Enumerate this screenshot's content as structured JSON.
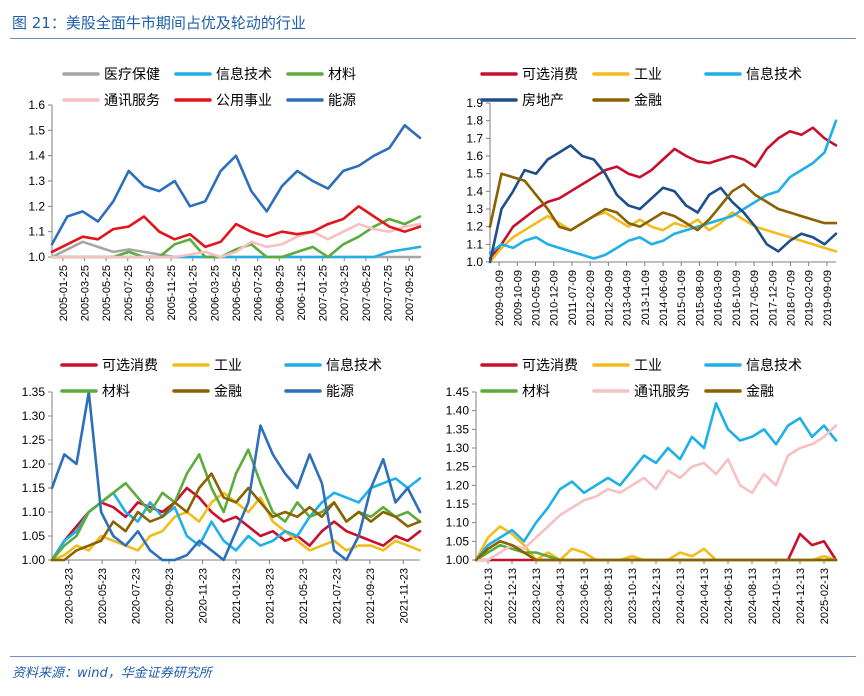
{
  "page": {
    "title": "图 21：美股全面牛市期间占优及轮动的行业",
    "source": "资料来源：wind，华金证券研究所"
  },
  "colors": {
    "医疗保健": "#a6a6a6",
    "信息技术": "#1fb0e8",
    "材料": "#5cab3c",
    "通讯服务": "#f6c1c1",
    "公用事业": "#e4141b",
    "能源": "#2e6fba",
    "可选消费": "#c8102e",
    "工业": "#f2bd1a",
    "房地产": "#1f4f8a",
    "金融": "#8a6200"
  },
  "chart_data": [
    {
      "type": "line",
      "ylim": [
        1.0,
        1.6
      ],
      "yticks": [
        "1.0",
        "1.1",
        "1.2",
        "1.3",
        "1.4",
        "1.5",
        "1.6"
      ],
      "xticks": [
        "2005-01-25",
        "2005-03-25",
        "2005-05-25",
        "2005-07-25",
        "2005-09-25",
        "2005-11-25",
        "2006-01-25",
        "2006-03-25",
        "2006-05-25",
        "2006-07-25",
        "2006-09-25",
        "2006-11-25",
        "2007-01-25",
        "2007-03-25",
        "2007-05-25",
        "2007-07-25",
        "2007-09-25"
      ],
      "legend": [
        "医疗保健",
        "信息技术",
        "材料",
        "通讯服务",
        "公用事业",
        "能源"
      ],
      "series": [
        {
          "name": "医疗保健",
          "values": [
            1.0,
            1.03,
            1.06,
            1.04,
            1.02,
            1.03,
            1.02,
            1.01,
            1.0,
            1.0,
            1.0,
            1.0,
            1.0,
            1.0,
            1.0,
            1.0,
            1.0,
            1.0,
            1.0,
            1.0,
            1.0,
            1.0,
            1.0,
            1.0,
            1.0
          ]
        },
        {
          "name": "信息技术",
          "values": [
            1.0,
            1.0,
            1.0,
            1.0,
            1.0,
            1.0,
            1.0,
            1.0,
            1.0,
            1.0,
            1.0,
            1.0,
            1.0,
            1.0,
            1.0,
            1.0,
            1.0,
            1.0,
            1.0,
            1.0,
            1.0,
            1.0,
            1.02,
            1.03,
            1.04
          ]
        },
        {
          "name": "材料",
          "values": [
            1.0,
            1.0,
            1.0,
            1.0,
            1.0,
            1.02,
            1.0,
            1.0,
            1.05,
            1.07,
            1.0,
            1.0,
            1.03,
            1.05,
            1.0,
            1.0,
            1.02,
            1.04,
            1.0,
            1.05,
            1.08,
            1.12,
            1.15,
            1.13,
            1.16
          ]
        },
        {
          "name": "通讯服务",
          "values": [
            1.0,
            1.0,
            1.0,
            1.0,
            1.0,
            1.0,
            1.0,
            1.0,
            1.0,
            1.01,
            1.02,
            1.0,
            1.02,
            1.06,
            1.04,
            1.05,
            1.08,
            1.1,
            1.07,
            1.1,
            1.13,
            1.11,
            1.1,
            1.12,
            1.13
          ]
        },
        {
          "name": "公用事业",
          "values": [
            1.02,
            1.05,
            1.08,
            1.07,
            1.11,
            1.12,
            1.16,
            1.1,
            1.07,
            1.09,
            1.04,
            1.06,
            1.13,
            1.1,
            1.08,
            1.1,
            1.09,
            1.1,
            1.13,
            1.15,
            1.2,
            1.16,
            1.12,
            1.1,
            1.12
          ]
        },
        {
          "name": "能源",
          "values": [
            1.05,
            1.16,
            1.18,
            1.14,
            1.22,
            1.34,
            1.28,
            1.26,
            1.3,
            1.2,
            1.22,
            1.34,
            1.4,
            1.26,
            1.18,
            1.28,
            1.34,
            1.3,
            1.27,
            1.34,
            1.36,
            1.4,
            1.43,
            1.52,
            1.47
          ]
        }
      ]
    },
    {
      "type": "line",
      "ylim": [
        1.0,
        1.9
      ],
      "yticks": [
        "1.0",
        "1.1",
        "1.2",
        "1.3",
        "1.4",
        "1.5",
        "1.6",
        "1.7",
        "1.8",
        "1.9"
      ],
      "xticks": [
        "2009-03-09",
        "2009-10-09",
        "2010-05-09",
        "2010-12-09",
        "2011-07-09",
        "2012-02-09",
        "2012-09-09",
        "2013-04-09",
        "2013-11-09",
        "2014-06-09",
        "2015-01-09",
        "2015-08-09",
        "2016-03-09",
        "2016-10-09",
        "2017-05-09",
        "2017-12-09",
        "2018-07-09",
        "2019-02-09",
        "2019-09-09"
      ],
      "legend": [
        "可选消费",
        "工业",
        "信息技术",
        "房地产",
        "金融"
      ],
      "series": [
        {
          "name": "可选消费",
          "values": [
            1.02,
            1.1,
            1.2,
            1.25,
            1.3,
            1.34,
            1.36,
            1.4,
            1.44,
            1.48,
            1.52,
            1.54,
            1.5,
            1.48,
            1.52,
            1.58,
            1.64,
            1.6,
            1.57,
            1.56,
            1.58,
            1.6,
            1.58,
            1.54,
            1.64,
            1.7,
            1.74,
            1.72,
            1.76,
            1.7,
            1.66
          ]
        },
        {
          "name": "工业",
          "values": [
            1.0,
            1.08,
            1.14,
            1.18,
            1.22,
            1.26,
            1.22,
            1.18,
            1.22,
            1.26,
            1.28,
            1.24,
            1.2,
            1.24,
            1.2,
            1.18,
            1.22,
            1.2,
            1.24,
            1.18,
            1.22,
            1.28,
            1.24,
            1.2,
            1.18,
            1.16,
            1.14,
            1.12,
            1.1,
            1.08,
            1.06
          ]
        },
        {
          "name": "信息技术",
          "values": [
            1.05,
            1.1,
            1.08,
            1.12,
            1.14,
            1.1,
            1.08,
            1.06,
            1.04,
            1.02,
            1.04,
            1.08,
            1.12,
            1.14,
            1.1,
            1.12,
            1.16,
            1.18,
            1.2,
            1.22,
            1.24,
            1.26,
            1.3,
            1.34,
            1.38,
            1.4,
            1.48,
            1.52,
            1.56,
            1.62,
            1.8
          ]
        },
        {
          "name": "房地产",
          "values": [
            1.0,
            1.3,
            1.4,
            1.52,
            1.5,
            1.58,
            1.62,
            1.66,
            1.6,
            1.58,
            1.5,
            1.38,
            1.32,
            1.3,
            1.36,
            1.42,
            1.4,
            1.32,
            1.28,
            1.38,
            1.42,
            1.34,
            1.28,
            1.2,
            1.1,
            1.06,
            1.12,
            1.16,
            1.14,
            1.1,
            1.16
          ]
        },
        {
          "name": "金融",
          "values": [
            1.2,
            1.5,
            1.48,
            1.46,
            1.38,
            1.3,
            1.2,
            1.18,
            1.22,
            1.26,
            1.3,
            1.28,
            1.22,
            1.2,
            1.24,
            1.28,
            1.26,
            1.22,
            1.18,
            1.24,
            1.32,
            1.4,
            1.44,
            1.38,
            1.34,
            1.3,
            1.28,
            1.26,
            1.24,
            1.22,
            1.22
          ]
        }
      ]
    },
    {
      "type": "line",
      "ylim": [
        1.0,
        1.35
      ],
      "yticks": [
        "1.00",
        "1.05",
        "1.10",
        "1.15",
        "1.20",
        "1.25",
        "1.30",
        "1.35"
      ],
      "xticks": [
        "2020-03-23",
        "2020-05-23",
        "2020-07-23",
        "2020-09-23",
        "2020-11-23",
        "2021-01-23",
        "2021-03-23",
        "2021-05-23",
        "2021-07-23",
        "2021-09-23",
        "2021-11-23"
      ],
      "legend": [
        "可选消费",
        "工业",
        "信息技术",
        "材料",
        "金融",
        "能源"
      ],
      "series": [
        {
          "name": "可选消费",
          "values": [
            1.0,
            1.04,
            1.07,
            1.1,
            1.12,
            1.11,
            1.09,
            1.12,
            1.11,
            1.1,
            1.12,
            1.15,
            1.13,
            1.1,
            1.08,
            1.09,
            1.07,
            1.05,
            1.06,
            1.04,
            1.05,
            1.03,
            1.06,
            1.08,
            1.06,
            1.05,
            1.04,
            1.03,
            1.05,
            1.04,
            1.06
          ]
        },
        {
          "name": "工业",
          "values": [
            1.0,
            1.01,
            1.03,
            1.02,
            1.05,
            1.04,
            1.03,
            1.02,
            1.05,
            1.06,
            1.09,
            1.1,
            1.08,
            1.12,
            1.14,
            1.12,
            1.1,
            1.13,
            1.08,
            1.06,
            1.04,
            1.02,
            1.03,
            1.04,
            1.02,
            1.03,
            1.03,
            1.02,
            1.04,
            1.03,
            1.02
          ]
        },
        {
          "name": "信息技术",
          "values": [
            1.0,
            1.04,
            1.06,
            1.1,
            1.12,
            1.14,
            1.1,
            1.08,
            1.12,
            1.09,
            1.11,
            1.05,
            1.03,
            1.08,
            1.04,
            1.02,
            1.05,
            1.03,
            1.04,
            1.06,
            1.05,
            1.09,
            1.12,
            1.14,
            1.13,
            1.12,
            1.15,
            1.16,
            1.17,
            1.15,
            1.17
          ]
        },
        {
          "name": "材料",
          "values": [
            1.0,
            1.03,
            1.05,
            1.1,
            1.12,
            1.14,
            1.16,
            1.13,
            1.1,
            1.14,
            1.12,
            1.18,
            1.22,
            1.15,
            1.1,
            1.18,
            1.23,
            1.16,
            1.1,
            1.08,
            1.12,
            1.09,
            1.1,
            1.12,
            1.08,
            1.1,
            1.09,
            1.11,
            1.09,
            1.1,
            1.08
          ]
        },
        {
          "name": "金融",
          "values": [
            1.0,
            1.0,
            1.02,
            1.03,
            1.04,
            1.08,
            1.06,
            1.1,
            1.08,
            1.09,
            1.12,
            1.1,
            1.15,
            1.18,
            1.13,
            1.12,
            1.15,
            1.12,
            1.09,
            1.1,
            1.09,
            1.11,
            1.09,
            1.12,
            1.08,
            1.1,
            1.08,
            1.1,
            1.09,
            1.07,
            1.08
          ]
        },
        {
          "name": "能源",
          "values": [
            1.15,
            1.22,
            1.2,
            1.35,
            1.1,
            1.05,
            1.03,
            1.06,
            1.02,
            1.0,
            1.0,
            1.01,
            1.04,
            1.02,
            1.0,
            1.06,
            1.12,
            1.28,
            1.22,
            1.18,
            1.15,
            1.22,
            1.16,
            1.02,
            1.0,
            1.05,
            1.15,
            1.21,
            1.12,
            1.15,
            1.1
          ]
        }
      ]
    },
    {
      "type": "line",
      "ylim": [
        1.0,
        1.45
      ],
      "yticks": [
        "1.00",
        "1.05",
        "1.10",
        "1.15",
        "1.20",
        "1.25",
        "1.30",
        "1.35",
        "1.40",
        "1.45"
      ],
      "xticks": [
        "2022-10-13",
        "2022-12-13",
        "2023-02-13",
        "2023-04-13",
        "2023-06-13",
        "2023-08-13",
        "2023-10-13",
        "2023-12-13",
        "2024-02-13",
        "2024-04-13",
        "2024-06-13",
        "2024-08-13",
        "2024-10-13",
        "2024-12-13",
        "2025-02-13"
      ],
      "legend": [
        "可选消费",
        "工业",
        "信息技术",
        "材料",
        "通讯服务",
        "金融"
      ],
      "series": [
        {
          "name": "可选消费",
          "values": [
            1.0,
            1.0,
            1.0,
            1.0,
            1.0,
            1.0,
            1.0,
            1.0,
            1.0,
            1.0,
            1.0,
            1.0,
            1.0,
            1.0,
            1.0,
            1.0,
            1.0,
            1.0,
            1.0,
            1.0,
            1.0,
            1.0,
            1.0,
            1.0,
            1.0,
            1.0,
            1.0,
            1.07,
            1.04,
            1.05,
            1.0
          ]
        },
        {
          "name": "工业",
          "values": [
            1.0,
            1.06,
            1.09,
            1.07,
            1.04,
            1.0,
            1.02,
            1.0,
            1.03,
            1.02,
            1.0,
            1.0,
            1.0,
            1.01,
            1.0,
            1.0,
            1.0,
            1.02,
            1.01,
            1.03,
            1.0,
            1.0,
            1.0,
            1.0,
            1.0,
            1.0,
            1.0,
            1.0,
            1.0,
            1.01,
            1.0
          ]
        },
        {
          "name": "信息技术",
          "values": [
            1.0,
            1.04,
            1.06,
            1.08,
            1.05,
            1.1,
            1.14,
            1.19,
            1.21,
            1.18,
            1.2,
            1.22,
            1.2,
            1.24,
            1.28,
            1.26,
            1.3,
            1.27,
            1.33,
            1.3,
            1.42,
            1.35,
            1.32,
            1.33,
            1.35,
            1.31,
            1.36,
            1.38,
            1.33,
            1.36,
            1.32
          ]
        },
        {
          "name": "材料",
          "values": [
            1.0,
            1.02,
            1.04,
            1.03,
            1.02,
            1.02,
            1.01,
            1.0,
            1.0,
            1.0,
            1.0,
            1.0,
            1.0,
            1.0,
            1.0,
            1.0,
            1.0,
            1.0,
            1.0,
            1.0,
            1.0,
            1.0,
            1.0,
            1.0,
            1.0,
            1.0,
            1.0,
            1.0,
            1.0,
            1.0,
            1.0
          ]
        },
        {
          "name": "通讯服务",
          "values": [
            1.0,
            1.0,
            1.02,
            1.04,
            1.03,
            1.06,
            1.09,
            1.12,
            1.14,
            1.16,
            1.17,
            1.19,
            1.18,
            1.2,
            1.22,
            1.19,
            1.24,
            1.22,
            1.25,
            1.26,
            1.23,
            1.27,
            1.2,
            1.18,
            1.23,
            1.2,
            1.28,
            1.3,
            1.31,
            1.33,
            1.36
          ]
        },
        {
          "name": "金融",
          "values": [
            1.0,
            1.03,
            1.05,
            1.04,
            1.02,
            1.0,
            1.0,
            1.0,
            1.0,
            1.0,
            1.0,
            1.0,
            1.0,
            1.0,
            1.0,
            1.0,
            1.0,
            1.0,
            1.0,
            1.0,
            1.0,
            1.0,
            1.0,
            1.0,
            1.0,
            1.0,
            1.0,
            1.0,
            1.0,
            1.0,
            1.0
          ]
        }
      ]
    }
  ]
}
